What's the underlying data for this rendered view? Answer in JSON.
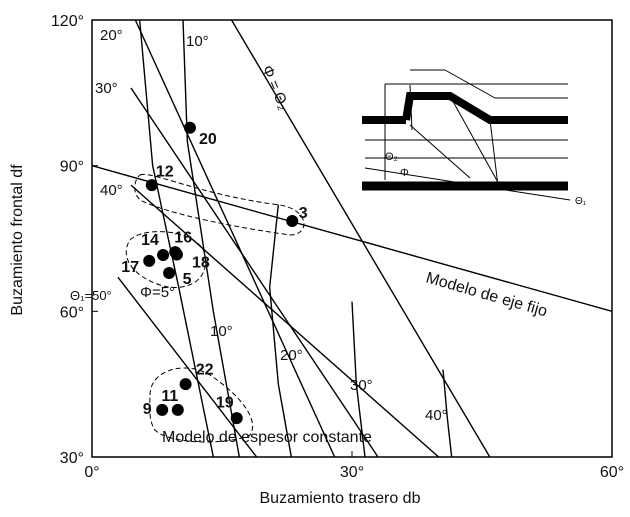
{
  "chart_data": {
    "type": "scatter",
    "x_label": "Buzamiento trasero db",
    "y_label": "Buzamiento frontal df",
    "xlim": [
      0,
      60
    ],
    "ylim": [
      30,
      120
    ],
    "xticks": [
      {
        "value": 0,
        "label": "0°"
      },
      {
        "value": 30,
        "label": "30°"
      },
      {
        "value": 60,
        "label": "60°"
      }
    ],
    "yticks": [
      {
        "value": 30,
        "label": "30°"
      },
      {
        "value": 60,
        "label": "60°"
      },
      {
        "value": 90,
        "label": "90°"
      },
      {
        "value": 120,
        "label": "120°"
      }
    ],
    "color": "#000000",
    "x": [
      11.3,
      6.9,
      23.1,
      8.2,
      9.6,
      6.6,
      9.8,
      8.9,
      10.8,
      8.1,
      9.9,
      16.7
    ],
    "values": [
      97.8,
      86.0,
      78.6,
      71.6,
      72.2,
      70.4,
      71.7,
      67.9,
      45.0,
      39.7,
      39.7,
      38.0
    ],
    "point_labels": [
      "20",
      "12",
      "3",
      "14",
      "16",
      "17",
      "18",
      "5",
      "22",
      "9",
      "11",
      "19"
    ],
    "curves": [
      {
        "labels": [
          "20°"
        ],
        "x": [
          5,
          28
        ],
        "y": [
          120,
          30
        ]
      },
      {
        "labels": [
          "30°"
        ],
        "x": [
          4.5,
          33
        ],
        "y": [
          106,
          30
        ]
      },
      {
        "labels": [
          "40°"
        ],
        "x": [
          4.5,
          40
        ],
        "y": [
          86,
          30
        ]
      },
      {
        "labels": [
          "Θ₁=50°"
        ],
        "x": [
          3,
          19
        ],
        "y": [
          67,
          30
        ]
      },
      {
        "labels": [
          "Φ=5°"
        ],
        "x": [
          5.5,
          7,
          10,
          14
        ],
        "y": [
          120,
          90,
          65,
          30
        ]
      },
      {
        "labels": [
          "10°",
          "10°"
        ],
        "x": [
          10.5,
          11,
          14,
          17
        ],
        "y": [
          120,
          95,
          60,
          30
        ]
      },
      {
        "labels": [
          "20°"
        ],
        "x": [
          21.5,
          20.5,
          21.5,
          23
        ],
        "y": [
          82,
          65,
          45,
          30
        ]
      },
      {
        "labels": [
          "30°"
        ],
        "x": [
          30,
          30.5,
          31.5
        ],
        "y": [
          62,
          45,
          30
        ]
      },
      {
        "labels": [
          "40°"
        ],
        "x": [
          40.5,
          41,
          41.5
        ],
        "y": [
          48,
          38,
          30
        ]
      },
      {
        "labels": [
          "Φ = Θ₂"
        ],
        "x": [
          16.1,
          45.9
        ],
        "y": [
          120,
          30
        ]
      },
      {
        "labels": [
          "Modelo de eje fijo"
        ],
        "x": [
          0,
          60
        ],
        "y": [
          90,
          60
        ]
      }
    ],
    "annotation": "Modelo de espesor constante",
    "inset_labels": [
      "Θ₂",
      "Φ",
      "Θ₁"
    ]
  }
}
